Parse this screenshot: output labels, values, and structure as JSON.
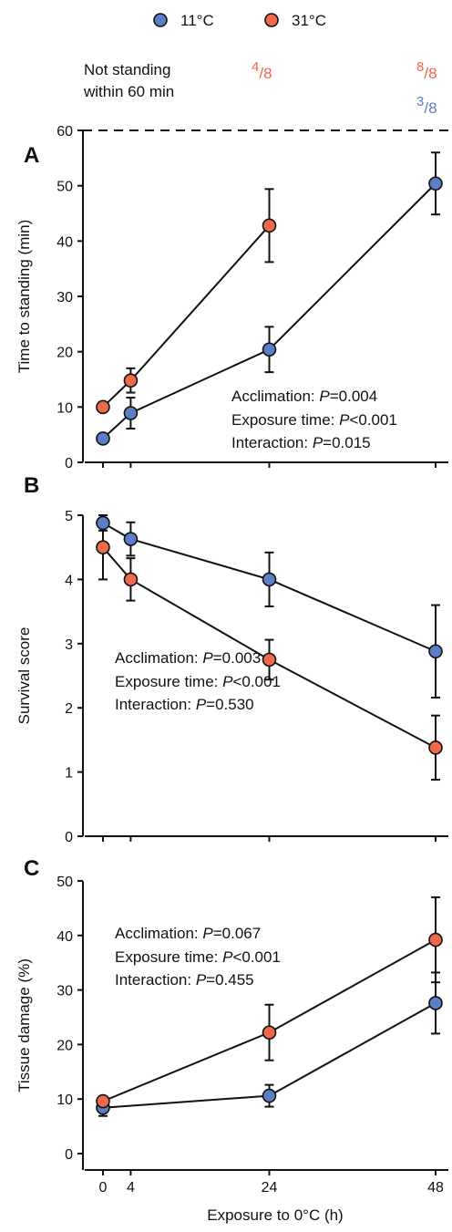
{
  "legend": {
    "entries": [
      {
        "label": "11°C",
        "color": "#5b7fc4"
      },
      {
        "label": "31°C",
        "color": "#ef6a4a"
      }
    ]
  },
  "header": {
    "label_line1": "Not standing",
    "label_line2": "within 60 min",
    "fractions": [
      {
        "at_x": 24,
        "series": "31°C",
        "num": "4",
        "den": "/8"
      },
      {
        "at_x": 48,
        "series": "31°C",
        "num": "8",
        "den": "/8"
      },
      {
        "at_x": 48,
        "series": "11°C",
        "num": "3",
        "den": "/8"
      }
    ]
  },
  "colors": {
    "s11": "#5b7fc4",
    "s31": "#ef6a4a",
    "line": "#111111"
  },
  "xaxis": {
    "label": "Exposure to 0°C (h)",
    "ticks": [
      0,
      4,
      24,
      48
    ]
  },
  "chart_data": [
    {
      "panel": "A",
      "type": "line",
      "ylabel": "Time to standing (min)",
      "ylim": [
        0,
        60
      ],
      "yticks": [
        0,
        10,
        20,
        30,
        40,
        50,
        60
      ],
      "reference_line": 60,
      "x": [
        0,
        4,
        24,
        48
      ],
      "series": [
        {
          "name": "11°C",
          "x": [
            0,
            4,
            24,
            48
          ],
          "values": [
            4.3,
            8.9,
            20.4,
            50.4
          ],
          "err": [
            0.5,
            2.8,
            4.1,
            5.6
          ]
        },
        {
          "name": "31°C",
          "x": [
            0,
            4,
            24
          ],
          "values": [
            10.0,
            14.8,
            42.8
          ],
          "err": [
            0.5,
            2.2,
            6.6
          ]
        }
      ],
      "stats": [
        {
          "name": "Acclimation: ",
          "p": "P",
          "value": "=0.004"
        },
        {
          "name": "Exposure time: ",
          "p": "P",
          "value": "<0.001"
        },
        {
          "name": "Interaction: ",
          "p": "P",
          "value": "=0.015"
        }
      ]
    },
    {
      "panel": "B",
      "type": "line",
      "ylabel": "Survival score",
      "ylim": [
        0,
        5.5
      ],
      "yticks": [
        0,
        1,
        2,
        3,
        4,
        5
      ],
      "x": [
        0,
        4,
        24,
        48
      ],
      "series": [
        {
          "name": "11°C",
          "x": [
            0,
            4,
            24,
            48
          ],
          "values": [
            4.88,
            4.63,
            4.0,
            2.88
          ],
          "err": [
            0.12,
            0.26,
            0.42,
            0.72
          ]
        },
        {
          "name": "31°C",
          "x": [
            0,
            4,
            24,
            48
          ],
          "values": [
            4.5,
            4.0,
            2.75,
            1.38
          ],
          "err": [
            0.5,
            0.33,
            0.31,
            0.5
          ]
        }
      ],
      "stats": [
        {
          "name": "Acclimation: ",
          "p": "P",
          "value": "=0.003"
        },
        {
          "name": "Exposure time: ",
          "p": "P",
          "value": "<0.001"
        },
        {
          "name": "Interaction: ",
          "p": "P",
          "value": "=0.530"
        }
      ]
    },
    {
      "panel": "C",
      "type": "line",
      "ylabel": "Tissue damage (%)",
      "ylim": [
        -2,
        52
      ],
      "yticks": [
        0,
        10,
        20,
        30,
        40,
        50
      ],
      "x": [
        0,
        24,
        48
      ],
      "series": [
        {
          "name": "11°C",
          "x": [
            0,
            24,
            48
          ],
          "values": [
            8.4,
            10.6,
            27.6
          ],
          "err": [
            1.5,
            2.0,
            5.6
          ]
        },
        {
          "name": "31°C",
          "x": [
            0,
            24,
            48
          ],
          "values": [
            9.6,
            22.2,
            39.2
          ],
          "err": [
            0.8,
            5.1,
            7.8
          ]
        }
      ],
      "stats": [
        {
          "name": "Acclimation: ",
          "p": "P",
          "value": "=0.067"
        },
        {
          "name": "Exposure time: ",
          "p": "P",
          "value": "<0.001"
        },
        {
          "name": "Interaction: ",
          "p": "P",
          "value": "=0.455"
        }
      ]
    }
  ]
}
